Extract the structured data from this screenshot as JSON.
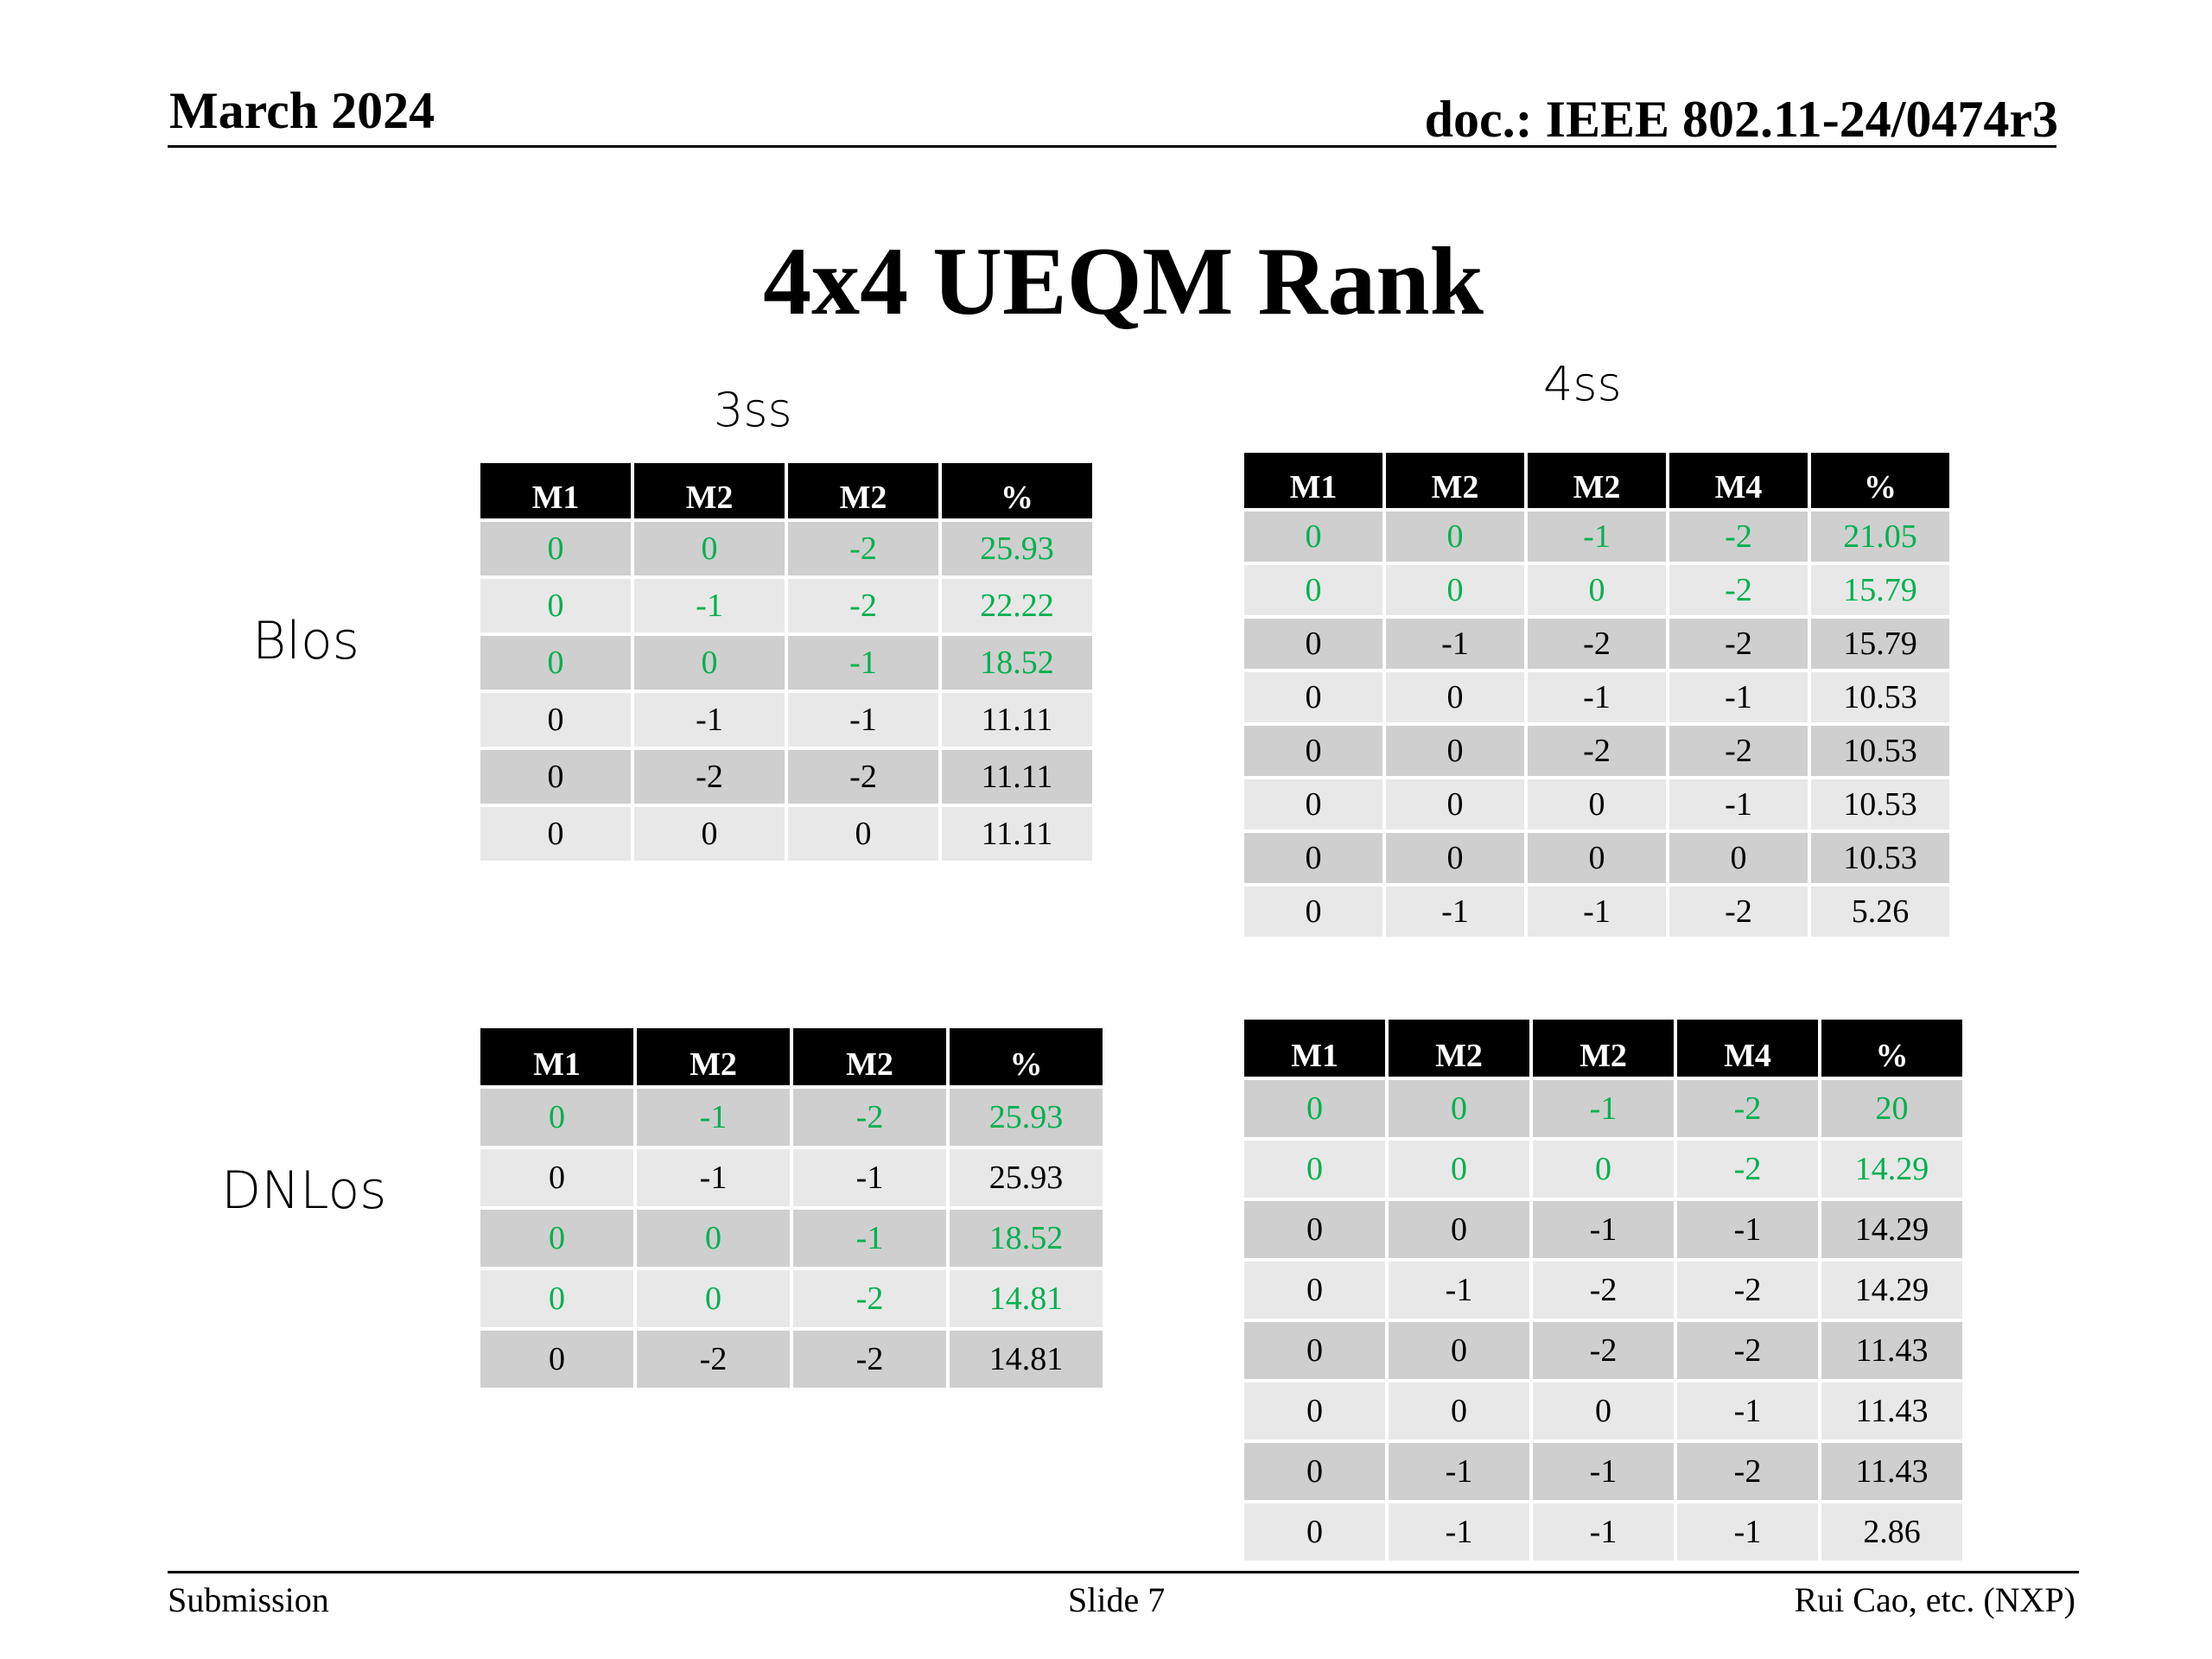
{
  "header": {
    "date": "March 2024",
    "doc_id": "doc.: IEEE 802.11-24/0474r3"
  },
  "title": "4x4 UEQM Rank",
  "columns_label_3ss": "3ss",
  "columns_label_4ss": "4ss",
  "row_label_blos": "Blos",
  "row_label_dnlos": "DNLos",
  "tables": {
    "blos_3ss": {
      "headers": [
        "M1",
        "M2",
        "M2",
        "%"
      ],
      "rows": [
        {
          "cells": [
            "0",
            "0",
            "-2",
            "25.93"
          ],
          "highlight": true
        },
        {
          "cells": [
            "0",
            "-1",
            "-2",
            "22.22"
          ],
          "highlight": true
        },
        {
          "cells": [
            "0",
            "0",
            "-1",
            "18.52"
          ],
          "highlight": true
        },
        {
          "cells": [
            "0",
            "-1",
            "-1",
            "11.11"
          ],
          "highlight": false
        },
        {
          "cells": [
            "0",
            "-2",
            "-2",
            "11.11"
          ],
          "highlight": false
        },
        {
          "cells": [
            "0",
            "0",
            "0",
            "11.11"
          ],
          "highlight": false
        }
      ]
    },
    "blos_4ss": {
      "headers": [
        "M1",
        "M2",
        "M2",
        "M4",
        "%"
      ],
      "rows": [
        {
          "cells": [
            "0",
            "0",
            "-1",
            "-2",
            "21.05"
          ],
          "highlight": true
        },
        {
          "cells": [
            "0",
            "0",
            "0",
            "-2",
            "15.79"
          ],
          "highlight": true
        },
        {
          "cells": [
            "0",
            "-1",
            "-2",
            "-2",
            "15.79"
          ],
          "highlight": false
        },
        {
          "cells": [
            "0",
            "0",
            "-1",
            "-1",
            "10.53"
          ],
          "highlight": false
        },
        {
          "cells": [
            "0",
            "0",
            "-2",
            "-2",
            "10.53"
          ],
          "highlight": false
        },
        {
          "cells": [
            "0",
            "0",
            "0",
            "-1",
            "10.53"
          ],
          "highlight": false
        },
        {
          "cells": [
            "0",
            "0",
            "0",
            "0",
            "10.53"
          ],
          "highlight": false
        },
        {
          "cells": [
            "0",
            "-1",
            "-1",
            "-2",
            "5.26"
          ],
          "highlight": false
        }
      ]
    },
    "dnlos_3ss": {
      "headers": [
        "M1",
        "M2",
        "M2",
        "%"
      ],
      "rows": [
        {
          "cells": [
            "0",
            "-1",
            "-2",
            "25.93"
          ],
          "highlight": true
        },
        {
          "cells": [
            "0",
            "-1",
            "-1",
            "25.93"
          ],
          "highlight": false
        },
        {
          "cells": [
            "0",
            "0",
            "-1",
            "18.52"
          ],
          "highlight": true
        },
        {
          "cells": [
            "0",
            "0",
            "-2",
            "14.81"
          ],
          "highlight": true
        },
        {
          "cells": [
            "0",
            "-2",
            "-2",
            "14.81"
          ],
          "highlight": false
        }
      ]
    },
    "dnlos_4ss": {
      "headers": [
        "M1",
        "M2",
        "M2",
        "M4",
        "%"
      ],
      "rows": [
        {
          "cells": [
            "0",
            "0",
            "-1",
            "-2",
            "20"
          ],
          "highlight": true
        },
        {
          "cells": [
            "0",
            "0",
            "0",
            "-2",
            "14.29"
          ],
          "highlight": true
        },
        {
          "cells": [
            "0",
            "0",
            "-1",
            "-1",
            "14.29"
          ],
          "highlight": false
        },
        {
          "cells": [
            "0",
            "-1",
            "-2",
            "-2",
            "14.29"
          ],
          "highlight": false
        },
        {
          "cells": [
            "0",
            "0",
            "-2",
            "-2",
            "11.43"
          ],
          "highlight": false
        },
        {
          "cells": [
            "0",
            "0",
            "0",
            "-1",
            "11.43"
          ],
          "highlight": false
        },
        {
          "cells": [
            "0",
            "-1",
            "-1",
            "-2",
            "11.43"
          ],
          "highlight": false
        },
        {
          "cells": [
            "0",
            "-1",
            "-1",
            "-1",
            "2.86"
          ],
          "highlight": false
        }
      ]
    }
  },
  "colors": {
    "highlight_text": "#00b050",
    "header_bg": "#000000",
    "row_dark": "#cfcfcf",
    "row_light": "#e8e8e8"
  },
  "footer": {
    "left": "Submission",
    "center": "Slide 7",
    "right": "Rui Cao, etc. (NXP)"
  }
}
